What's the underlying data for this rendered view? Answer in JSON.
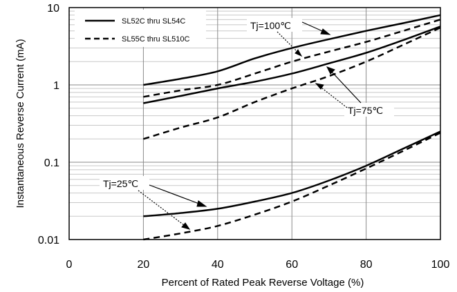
{
  "chart_data": {
    "type": "line",
    "title": "",
    "xlabel": "Percent of  Rated Peak Reverse Voltage (%)",
    "ylabel": "Instantaneous Reverse Current (mA)",
    "xlim": [
      0,
      100
    ],
    "ylim": [
      0.01,
      10
    ],
    "yscale": "log",
    "grid": true,
    "legend_position": "top-left",
    "x_ticks": [
      "0",
      "20",
      "40",
      "60",
      "80",
      "100"
    ],
    "y_ticks": [
      "0.01",
      "0.1",
      "1",
      "10"
    ],
    "legend": [
      {
        "label": "SL52C thru SL54C",
        "style": "solid"
      },
      {
        "label": "SL55C thru SL510C",
        "style": "dashed"
      }
    ],
    "series": [
      {
        "legend": "SL52C thru SL54C",
        "temperature": "Tj=100℃",
        "style": "solid",
        "x": [
          20,
          30,
          40,
          50,
          60,
          70,
          80,
          90,
          100
        ],
        "y": [
          1.0,
          1.2,
          1.5,
          2.2,
          3.0,
          3.9,
          5.0,
          6.3,
          8.0
        ]
      },
      {
        "legend": "SL55C thru SL510C",
        "temperature": "Tj=100℃",
        "style": "dashed",
        "x": [
          20,
          30,
          40,
          50,
          60,
          70,
          80,
          90,
          100
        ],
        "y": [
          0.7,
          0.85,
          1.0,
          1.4,
          2.0,
          2.7,
          3.6,
          5.0,
          7.0
        ]
      },
      {
        "legend": "SL52C thru SL54C",
        "temperature": "Tj=75℃",
        "style": "solid",
        "x": [
          20,
          30,
          40,
          50,
          60,
          70,
          80,
          90,
          100
        ],
        "y": [
          0.58,
          0.72,
          0.9,
          1.1,
          1.4,
          1.9,
          2.6,
          3.8,
          5.7
        ]
      },
      {
        "legend": "SL55C thru SL510C",
        "temperature": "Tj=75℃",
        "style": "dashed",
        "x": [
          20,
          30,
          40,
          50,
          60,
          70,
          80,
          90,
          100
        ],
        "y": [
          0.2,
          0.28,
          0.38,
          0.6,
          0.9,
          1.3,
          2.0,
          3.3,
          5.5
        ]
      },
      {
        "legend": "SL52C thru SL54C",
        "temperature": "Tj=25℃",
        "style": "solid",
        "x": [
          20,
          30,
          40,
          50,
          60,
          70,
          80,
          90,
          100
        ],
        "y": [
          0.02,
          0.022,
          0.025,
          0.031,
          0.04,
          0.058,
          0.09,
          0.15,
          0.25
        ]
      },
      {
        "legend": "SL55C thru SL510C",
        "temperature": "Tj=25℃",
        "style": "dashed",
        "x": [
          20,
          30,
          40,
          50,
          60,
          70,
          80,
          90,
          100
        ],
        "y": [
          0.01,
          0.012,
          0.015,
          0.021,
          0.031,
          0.05,
          0.083,
          0.14,
          0.24
        ]
      }
    ],
    "annotations": [
      {
        "text": "Tj=100℃"
      },
      {
        "text": "Tj=75℃"
      },
      {
        "text": "Tj=25℃"
      }
    ]
  }
}
